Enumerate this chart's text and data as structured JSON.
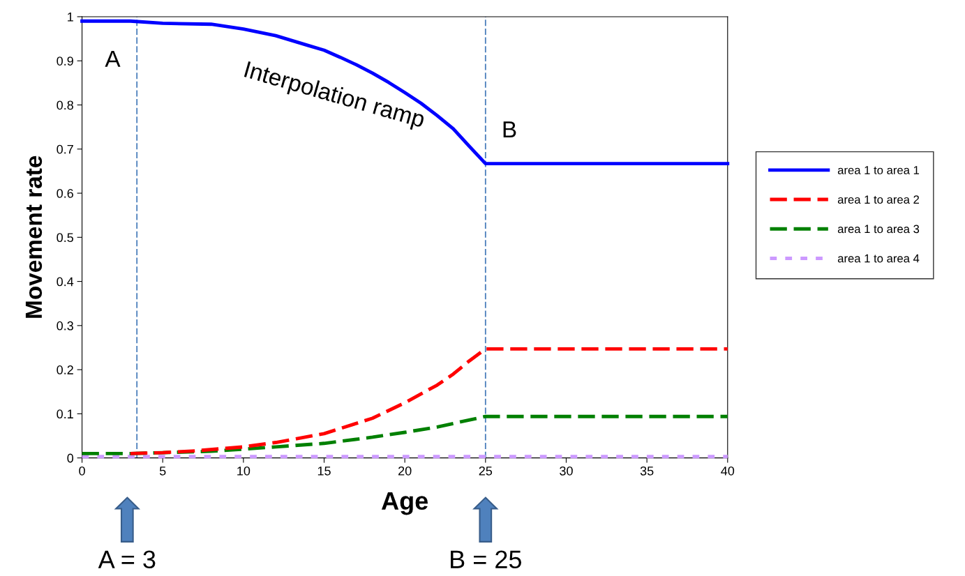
{
  "chart_data": {
    "type": "line",
    "xlabel": "Age",
    "ylabel": "Movement rate",
    "xlim": [
      0,
      40
    ],
    "xticks": [
      0,
      5,
      10,
      15,
      20,
      25,
      30,
      35,
      40
    ],
    "ylim": [
      0,
      1
    ],
    "yticks": [
      0,
      0.1,
      0.2,
      0.3,
      0.4,
      0.5,
      0.6,
      0.7,
      0.8,
      0.9,
      1
    ],
    "grid": false,
    "legend": "right",
    "marker": "none",
    "series": [
      {
        "name": "area 1 to area 1",
        "color": "#0000ff",
        "line_style": "solid",
        "x": [
          0,
          3,
          5,
          8,
          10,
          12,
          14,
          15,
          16,
          17,
          18,
          19,
          20,
          21,
          22,
          23,
          24,
          25,
          40
        ],
        "values": [
          0.99,
          0.99,
          0.985,
          0.983,
          0.972,
          0.957,
          0.935,
          0.924,
          0.908,
          0.891,
          0.872,
          0.851,
          0.828,
          0.804,
          0.776,
          0.746,
          0.706,
          0.667,
          0.667
        ]
      },
      {
        "name": "area 1 to area 2",
        "color": "#ff0000",
        "line_style": "dashed",
        "x": [
          3,
          5,
          7,
          10,
          12,
          15,
          18,
          20,
          22,
          23,
          24,
          25,
          40
        ],
        "values": [
          0.01,
          0.012,
          0.016,
          0.025,
          0.035,
          0.055,
          0.09,
          0.125,
          0.165,
          0.19,
          0.22,
          0.247,
          0.247
        ]
      },
      {
        "name": "area 1 to area 3",
        "color": "#008000",
        "line_style": "dashed",
        "x": [
          0,
          3,
          5,
          8,
          10,
          12,
          15,
          18,
          20,
          22,
          25,
          40
        ],
        "values": [
          0.01,
          0.01,
          0.012,
          0.015,
          0.02,
          0.025,
          0.033,
          0.047,
          0.058,
          0.07,
          0.094,
          0.094
        ]
      },
      {
        "name": "area 1 to area 4",
        "color": "#cc99ff",
        "line_style": "dotted",
        "x": [
          0,
          40
        ],
        "values": [
          0.003,
          0.003
        ]
      }
    ],
    "ref_lines": [
      {
        "axis": "x",
        "value": 3.4,
        "label": "A",
        "color": "#4a7ebb",
        "line_style": "dashed"
      },
      {
        "axis": "x",
        "value": 25,
        "label": "B",
        "color": "#4a7ebb",
        "line_style": "dashed"
      }
    ],
    "annotations": [
      "Interpolation ramp",
      "A = 3",
      "B = 25"
    ]
  }
}
